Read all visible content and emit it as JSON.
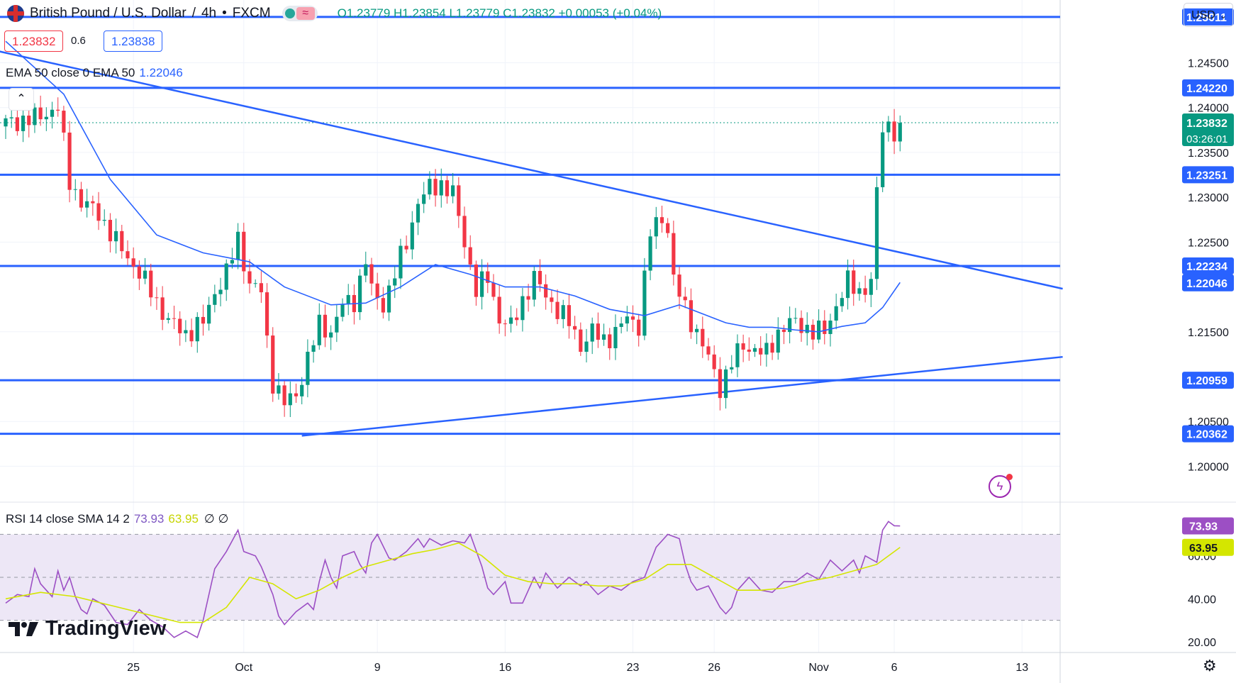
{
  "header": {
    "symbol": "British Pound / U.S. Dollar",
    "interval": "4h",
    "exchange": "FXCM",
    "open": "O1.23779",
    "high": "H1.23854",
    "low": "L1.23779",
    "close": "C1.23832",
    "change": "+0.00053 (+0.04%)"
  },
  "quote": {
    "bid": "1.23832",
    "spread": "0.6",
    "ask": "1.23838"
  },
  "currency": "USD",
  "ema_legend": {
    "label": "EMA 50 close 0 EMA 50",
    "value": "1.22046"
  },
  "rsi_legend": {
    "label": "RSI 14 close SMA 14 2",
    "rsi": "73.93",
    "sma": "63.95",
    "extra": "∅ ∅"
  },
  "countdown": "03:26:01",
  "logo_text": "TradingView",
  "colors": {
    "up": "#089981",
    "down": "#f23645",
    "level": "#2962ff",
    "ema": "#2962ff",
    "rsi": "#9c4fc4",
    "rsi_sma": "#d4e600",
    "rsi_band": "#ede7f6"
  },
  "icons": [
    "uk-flag-icon",
    "market-open-icon",
    "collapse-chevron-icon",
    "lightning-icon",
    "gear-icon"
  ],
  "chart_data": [
    {
      "type": "candlestick",
      "series_name": "GBP/USD 4h",
      "ylim": [
        1.196,
        1.252
      ],
      "x_ticks": [
        {
          "label": "25",
          "bar": 22
        },
        {
          "label": "Oct",
          "bar": 41
        },
        {
          "label": "9",
          "bar": 64
        },
        {
          "label": "16",
          "bar": 86
        },
        {
          "label": "23",
          "bar": 108
        },
        {
          "label": "26",
          "bar": 122
        },
        {
          "label": "Nov",
          "bar": 140
        },
        {
          "label": "6",
          "bar": 153
        },
        {
          "label": "13",
          "bar": 175
        }
      ],
      "y_ticks": [
        "1.20000",
        "1.20500",
        "1.21500",
        "1.22500",
        "1.23000",
        "1.23500",
        "1.24000",
        "1.24500"
      ],
      "horizontal_levels": [
        1.25011,
        1.2422,
        1.23251,
        1.22234,
        1.20959,
        1.20362
      ],
      "price_labels": [
        {
          "value": 1.25011,
          "text": "1.25011",
          "kind": "level"
        },
        {
          "value": 1.2422,
          "text": "1.24220",
          "kind": "level"
        },
        {
          "value": 1.23832,
          "text": "1.23832",
          "kind": "last"
        },
        {
          "value": 1.23251,
          "text": "1.23251",
          "kind": "level"
        },
        {
          "value": 1.22234,
          "text": "1.22234",
          "kind": "level"
        },
        {
          "value": 1.22046,
          "text": "1.22046",
          "kind": "ema"
        },
        {
          "value": 1.20959,
          "text": "1.20959",
          "kind": "level"
        },
        {
          "value": 1.20362,
          "text": "1.20362",
          "kind": "level"
        }
      ],
      "trendlines": [
        {
          "name": "descending-trendline",
          "from": {
            "bar": -2,
            "price": 1.2464
          },
          "to": {
            "bar": 182,
            "price": 1.2198
          }
        },
        {
          "name": "ascending-trendline",
          "from": {
            "bar": 51,
            "price": 1.2034
          },
          "to": {
            "bar": 182,
            "price": 1.2122
          }
        }
      ],
      "close_path": [
        [
          0,
          1.2383
        ],
        [
          5,
          1.2388
        ],
        [
          9,
          1.24
        ],
        [
          11,
          1.2318
        ],
        [
          13,
          1.2295
        ],
        [
          16,
          1.2282
        ],
        [
          19,
          1.225
        ],
        [
          22,
          1.2225
        ],
        [
          25,
          1.2195
        ],
        [
          28,
          1.2162
        ],
        [
          31,
          1.2148
        ],
        [
          34,
          1.216
        ],
        [
          36,
          1.2195
        ],
        [
          38,
          1.2215
        ],
        [
          40,
          1.2254
        ],
        [
          42,
          1.2203
        ],
        [
          44,
          1.2195
        ],
        [
          45,
          1.214
        ],
        [
          46,
          1.2095
        ],
        [
          48,
          1.207
        ],
        [
          50,
          1.208
        ],
        [
          52,
          1.212
        ],
        [
          54,
          1.2158
        ],
        [
          56,
          1.215
        ],
        [
          58,
          1.218
        ],
        [
          60,
          1.2185
        ],
        [
          62,
          1.223
        ],
        [
          63,
          1.2195
        ],
        [
          65,
          1.218
        ],
        [
          67,
          1.2215
        ],
        [
          69,
          1.225
        ],
        [
          71,
          1.2295
        ],
        [
          73,
          1.231
        ],
        [
          75,
          1.2315
        ],
        [
          77,
          1.2304
        ],
        [
          79,
          1.225
        ],
        [
          81,
          1.2197
        ],
        [
          83,
          1.221
        ],
        [
          85,
          1.2165
        ],
        [
          87,
          1.2155
        ],
        [
          89,
          1.2185
        ],
        [
          91,
          1.221
        ],
        [
          93,
          1.219
        ],
        [
          95,
          1.2175
        ],
        [
          97,
          1.216
        ],
        [
          99,
          1.2135
        ],
        [
          101,
          1.215
        ],
        [
          103,
          1.214
        ],
        [
          105,
          1.215
        ],
        [
          107,
          1.2165
        ],
        [
          109,
          1.2158
        ],
        [
          111,
          1.226
        ],
        [
          113,
          1.2278
        ],
        [
          114,
          1.2265
        ],
        [
          115,
          1.2208
        ],
        [
          117,
          1.2175
        ],
        [
          119,
          1.215
        ],
        [
          121,
          1.212
        ],
        [
          123,
          1.2088
        ],
        [
          125,
          1.2116
        ],
        [
          127,
          1.2135
        ],
        [
          129,
          1.213
        ],
        [
          131,
          1.2125
        ],
        [
          133,
          1.215
        ],
        [
          135,
          1.216
        ],
        [
          137,
          1.2158
        ],
        [
          139,
          1.215
        ],
        [
          141,
          1.215
        ],
        [
          143,
          1.218
        ],
        [
          145,
          1.2205
        ],
        [
          147,
          1.2195
        ],
        [
          149,
          1.2205
        ],
        [
          150,
          1.2304
        ],
        [
          151,
          1.2378
        ],
        [
          152,
          1.2381
        ],
        [
          153,
          1.2374
        ],
        [
          154,
          1.2383
        ]
      ],
      "ema_path": [
        [
          0,
          1.2474
        ],
        [
          10,
          1.2415
        ],
        [
          18,
          1.232
        ],
        [
          26,
          1.2258
        ],
        [
          34,
          1.2238
        ],
        [
          42,
          1.2228
        ],
        [
          48,
          1.22
        ],
        [
          56,
          1.218
        ],
        [
          62,
          1.2182
        ],
        [
          68,
          1.22
        ],
        [
          74,
          1.2225
        ],
        [
          80,
          1.2214
        ],
        [
          86,
          1.22
        ],
        [
          92,
          1.22
        ],
        [
          98,
          1.219
        ],
        [
          104,
          1.2175
        ],
        [
          110,
          1.2168
        ],
        [
          116,
          1.218
        ],
        [
          120,
          1.217
        ],
        [
          124,
          1.216
        ],
        [
          128,
          1.2155
        ],
        [
          132,
          1.2155
        ],
        [
          136,
          1.2152
        ],
        [
          140,
          1.215
        ],
        [
          144,
          1.2156
        ],
        [
          148,
          1.216
        ],
        [
          151,
          1.2177
        ],
        [
          154,
          1.2205
        ]
      ]
    },
    {
      "type": "line",
      "series_name": "RSI 14",
      "ylim": [
        15,
        85
      ],
      "y_ticks": [
        "20.00",
        "40.00",
        "60.00"
      ],
      "band": [
        30,
        70
      ],
      "current_labels": [
        {
          "value": 73.93,
          "text": "73.93"
        },
        {
          "value": 63.95,
          "text": "63.95"
        }
      ],
      "rsi": [
        [
          0,
          38
        ],
        [
          2,
          42
        ],
        [
          4,
          41
        ],
        [
          5,
          54
        ],
        [
          6,
          47
        ],
        [
          8,
          41
        ],
        [
          9,
          53
        ],
        [
          10,
          44
        ],
        [
          11,
          50
        ],
        [
          12,
          41
        ],
        [
          13,
          35
        ],
        [
          14,
          33
        ],
        [
          15,
          40
        ],
        [
          17,
          37
        ],
        [
          19,
          29
        ],
        [
          21,
          28
        ],
        [
          23,
          35
        ],
        [
          25,
          30
        ],
        [
          27,
          27
        ],
        [
          29,
          22
        ],
        [
          31,
          25
        ],
        [
          33,
          22
        ],
        [
          34,
          30
        ],
        [
          36,
          54
        ],
        [
          38,
          62
        ],
        [
          40,
          72
        ],
        [
          41,
          62
        ],
        [
          43,
          60
        ],
        [
          44,
          55
        ],
        [
          46,
          42
        ],
        [
          47,
          32
        ],
        [
          48,
          28
        ],
        [
          50,
          34
        ],
        [
          52,
          38
        ],
        [
          53,
          35
        ],
        [
          54,
          48
        ],
        [
          55,
          58
        ],
        [
          56,
          50
        ],
        [
          57,
          45
        ],
        [
          58,
          60
        ],
        [
          60,
          62
        ],
        [
          61,
          56
        ],
        [
          62,
          52
        ],
        [
          63,
          66
        ],
        [
          64,
          70
        ],
        [
          66,
          59
        ],
        [
          67,
          58
        ],
        [
          69,
          62
        ],
        [
          71,
          68
        ],
        [
          72,
          64
        ],
        [
          73,
          68
        ],
        [
          75,
          65
        ],
        [
          77,
          67
        ],
        [
          79,
          66
        ],
        [
          80,
          70
        ],
        [
          82,
          55
        ],
        [
          83,
          45
        ],
        [
          84,
          42
        ],
        [
          86,
          48
        ],
        [
          87,
          38
        ],
        [
          89,
          38
        ],
        [
          91,
          50
        ],
        [
          92,
          45
        ],
        [
          93,
          52
        ],
        [
          95,
          45
        ],
        [
          97,
          50
        ],
        [
          99,
          46
        ],
        [
          100,
          48
        ],
        [
          102,
          42
        ],
        [
          104,
          46
        ],
        [
          106,
          44
        ],
        [
          108,
          48
        ],
        [
          110,
          50
        ],
        [
          112,
          64
        ],
        [
          114,
          70
        ],
        [
          116,
          68
        ],
        [
          117,
          56
        ],
        [
          118,
          48
        ],
        [
          119,
          44
        ],
        [
          121,
          46
        ],
        [
          123,
          36
        ],
        [
          124,
          33
        ],
        [
          125,
          36
        ],
        [
          126,
          44
        ],
        [
          128,
          50
        ],
        [
          130,
          44
        ],
        [
          132,
          43
        ],
        [
          134,
          48
        ],
        [
          136,
          48
        ],
        [
          138,
          52
        ],
        [
          140,
          49
        ],
        [
          142,
          58
        ],
        [
          144,
          53
        ],
        [
          146,
          58
        ],
        [
          147,
          52
        ],
        [
          148,
          60
        ],
        [
          150,
          57
        ],
        [
          151,
          72
        ],
        [
          152,
          76
        ],
        [
          153,
          74
        ],
        [
          154,
          73.93
        ]
      ],
      "sma": [
        [
          0,
          40
        ],
        [
          6,
          43
        ],
        [
          12,
          41
        ],
        [
          18,
          37
        ],
        [
          24,
          33
        ],
        [
          30,
          29
        ],
        [
          34,
          29
        ],
        [
          38,
          36
        ],
        [
          42,
          50
        ],
        [
          46,
          47
        ],
        [
          50,
          40
        ],
        [
          54,
          44
        ],
        [
          58,
          50
        ],
        [
          62,
          55
        ],
        [
          66,
          58
        ],
        [
          70,
          61
        ],
        [
          74,
          63
        ],
        [
          78,
          66
        ],
        [
          82,
          60
        ],
        [
          86,
          51
        ],
        [
          90,
          48
        ],
        [
          94,
          47
        ],
        [
          98,
          47
        ],
        [
          102,
          46
        ],
        [
          106,
          46
        ],
        [
          110,
          49
        ],
        [
          114,
          56
        ],
        [
          118,
          56
        ],
        [
          122,
          50
        ],
        [
          126,
          44
        ],
        [
          130,
          44
        ],
        [
          134,
          45
        ],
        [
          138,
          48
        ],
        [
          142,
          50
        ],
        [
          146,
          53
        ],
        [
          150,
          56
        ],
        [
          154,
          63.95
        ]
      ]
    }
  ]
}
